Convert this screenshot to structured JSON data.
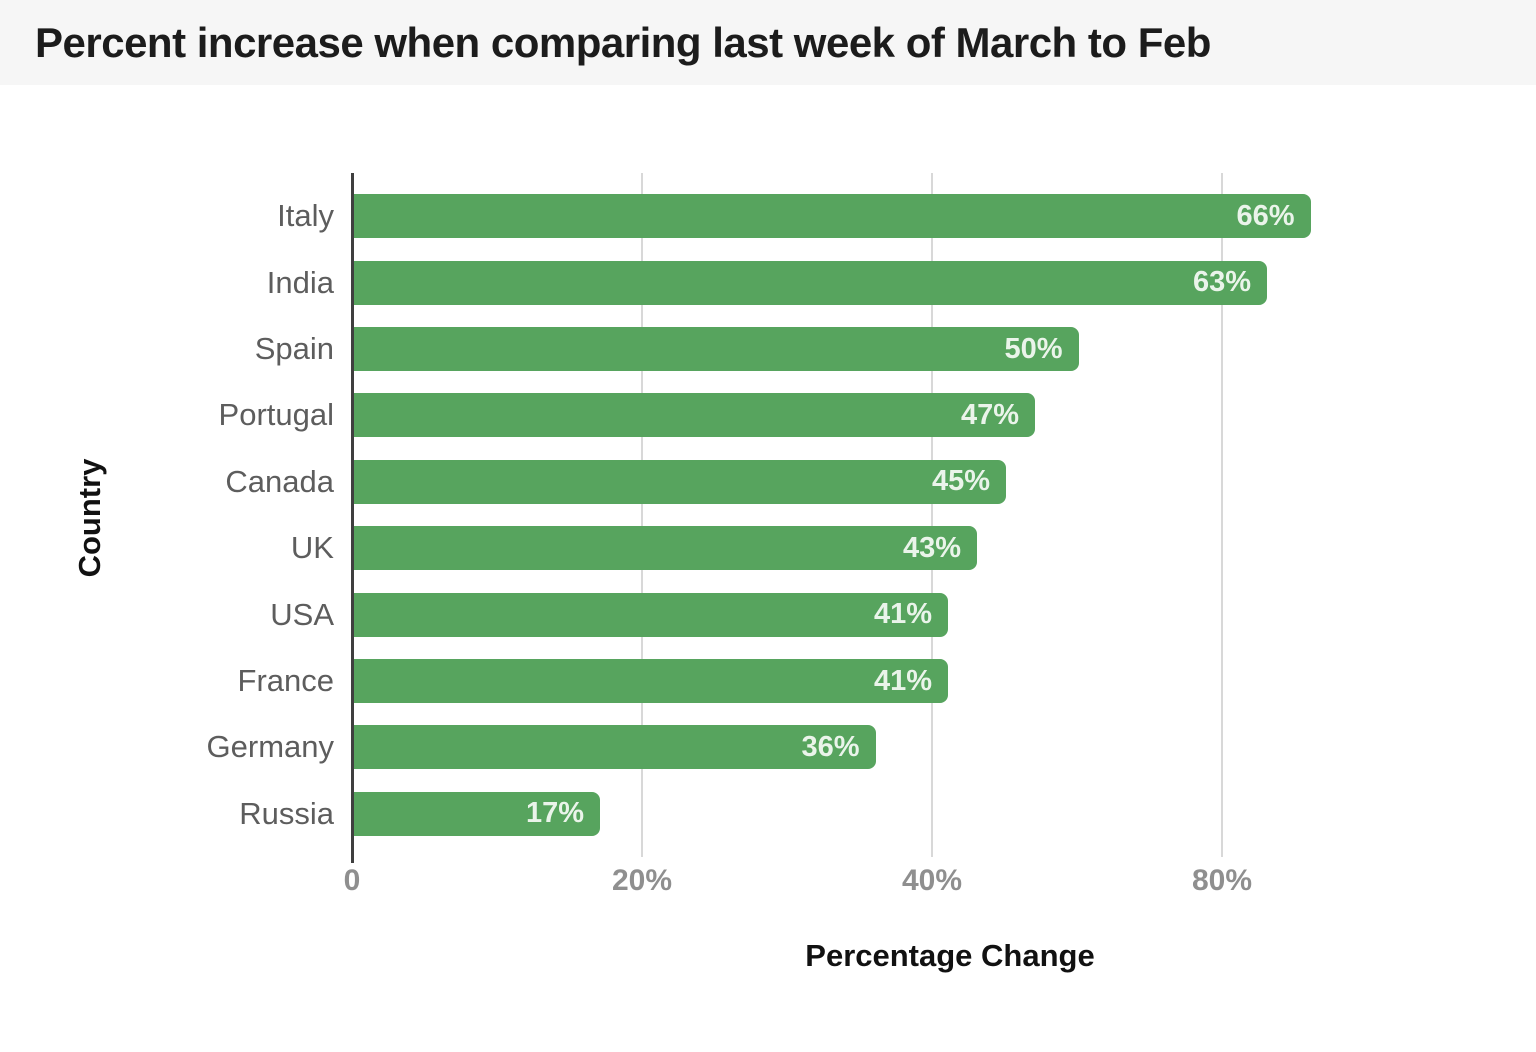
{
  "title": "Percent increase when comparing last week of March to Feb",
  "chart_data": {
    "type": "bar",
    "orientation": "horizontal",
    "title": "Percent increase when comparing last week of March to Feb",
    "xlabel": "Percentage Change",
    "ylabel": "Country",
    "categories": [
      "Italy",
      "India",
      "Spain",
      "Portugal",
      "Canada",
      "UK",
      "USA",
      "France",
      "Germany",
      "Russia"
    ],
    "values": [
      66,
      63,
      50,
      47,
      45,
      43,
      41,
      41,
      36,
      17
    ],
    "bar_labels": [
      "66%",
      "63%",
      "50%",
      "47%",
      "45%",
      "43%",
      "41%",
      "41%",
      "36%",
      "17%"
    ],
    "x_tick_labels": [
      "0",
      "20%",
      "40%",
      "80%"
    ],
    "x_tick_unit_step": 20,
    "xlim": [
      0,
      80
    ],
    "grid": "vertical",
    "legend": "none",
    "bar_color": "#57a45e"
  },
  "colors": {
    "bar": "#57a45e",
    "bar_label_text": "#eaf4ea",
    "title_text": "#1c1c1c",
    "title_band_bg": "#f6f6f6",
    "page_bg": "#ffffff",
    "grid_line": "#d8d8d8",
    "axis_line": "#3f3f3f",
    "category_label_text": "#5d5d5d",
    "tick_label_text": "#8f8f8f",
    "axis_title_text": "#111111"
  }
}
